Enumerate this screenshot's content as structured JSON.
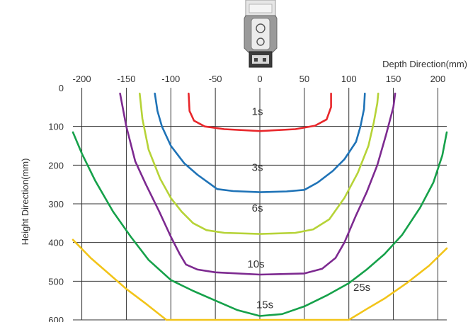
{
  "chart_data": {
    "type": "line",
    "title": "",
    "xlabel": "Depth Direction(mm)",
    "ylabel": "Height Direction(mm)",
    "xlim": [
      -210,
      210
    ],
    "ylim": [
      600,
      0
    ],
    "x_ticks": [
      "-200",
      "-150",
      "-100",
      "-50",
      "0",
      "50",
      "100",
      "150",
      "200"
    ],
    "y_ticks": [
      "0",
      "100",
      "200",
      "300",
      "400",
      "500",
      "600"
    ],
    "grid": true,
    "sensor_icon": "sensor-device-icon",
    "series": [
      {
        "name": "1s",
        "color": "#e8262a",
        "label_pos": [
          -9,
          70
        ],
        "points": [
          [
            -80,
            15
          ],
          [
            -79,
            60
          ],
          [
            -74,
            85
          ],
          [
            -62,
            100
          ],
          [
            -40,
            107
          ],
          [
            0,
            112
          ],
          [
            40,
            107
          ],
          [
            62,
            98
          ],
          [
            75,
            82
          ],
          [
            80,
            50
          ],
          [
            80,
            15
          ]
        ]
      },
      {
        "name": "3s",
        "color": "#1f73b7",
        "label_pos": [
          -9,
          215
        ],
        "points": [
          [
            -118,
            15
          ],
          [
            -115,
            60
          ],
          [
            -110,
            100
          ],
          [
            -100,
            150
          ],
          [
            -85,
            195
          ],
          [
            -70,
            225
          ],
          [
            -55,
            250
          ],
          [
            -48,
            262
          ],
          [
            -30,
            267
          ],
          [
            0,
            270
          ],
          [
            30,
            268
          ],
          [
            50,
            264
          ],
          [
            65,
            245
          ],
          [
            82,
            215
          ],
          [
            95,
            185
          ],
          [
            108,
            140
          ],
          [
            113,
            100
          ],
          [
            117,
            55
          ],
          [
            118,
            15
          ]
        ]
      },
      {
        "name": "6s",
        "color": "#b6d337",
        "label_pos": [
          -9,
          320
        ],
        "points": [
          [
            -135,
            15
          ],
          [
            -132,
            80
          ],
          [
            -125,
            160
          ],
          [
            -112,
            235
          ],
          [
            -100,
            285
          ],
          [
            -88,
            320
          ],
          [
            -75,
            350
          ],
          [
            -60,
            368
          ],
          [
            -40,
            375
          ],
          [
            0,
            378
          ],
          [
            40,
            375
          ],
          [
            60,
            366
          ],
          [
            78,
            340
          ],
          [
            95,
            285
          ],
          [
            110,
            220
          ],
          [
            122,
            150
          ],
          [
            128,
            90
          ],
          [
            132,
            40
          ],
          [
            133,
            15
          ]
        ]
      },
      {
        "name": "10s",
        "color": "#7d2a90",
        "label_pos": [
          -14,
          465
        ],
        "points": [
          [
            -157,
            15
          ],
          [
            -150,
            100
          ],
          [
            -140,
            190
          ],
          [
            -128,
            250
          ],
          [
            -113,
            320
          ],
          [
            -100,
            385
          ],
          [
            -90,
            430
          ],
          [
            -83,
            457
          ],
          [
            -70,
            470
          ],
          [
            -50,
            477
          ],
          [
            0,
            483
          ],
          [
            50,
            480
          ],
          [
            70,
            468
          ],
          [
            85,
            440
          ],
          [
            95,
            400
          ],
          [
            108,
            330
          ],
          [
            120,
            270
          ],
          [
            132,
            200
          ],
          [
            142,
            120
          ],
          [
            150,
            50
          ],
          [
            152,
            15
          ]
        ]
      },
      {
        "name": "15s",
        "color": "#16a14a",
        "label_pos": [
          -4,
          570
        ],
        "points": [
          [
            -210,
            115
          ],
          [
            -200,
            170
          ],
          [
            -185,
            240
          ],
          [
            -165,
            320
          ],
          [
            -145,
            385
          ],
          [
            -125,
            445
          ],
          [
            -100,
            497
          ],
          [
            -75,
            525
          ],
          [
            -50,
            550
          ],
          [
            -25,
            575
          ],
          [
            0,
            590
          ],
          [
            25,
            585
          ],
          [
            50,
            565
          ],
          [
            75,
            537
          ],
          [
            100,
            505
          ],
          [
            120,
            470
          ],
          [
            140,
            430
          ],
          [
            160,
            380
          ],
          [
            180,
            310
          ],
          [
            195,
            245
          ],
          [
            205,
            175
          ],
          [
            210,
            115
          ]
        ]
      },
      {
        "name": "25s",
        "color": "#f2c419",
        "label_pos": [
          105,
          525
        ],
        "points": [
          [
            -210,
            393
          ],
          [
            -190,
            440
          ],
          [
            -170,
            480
          ],
          [
            -150,
            520
          ],
          [
            -127,
            560
          ],
          [
            -105,
            600
          ],
          [
            100,
            600
          ],
          [
            120,
            572
          ],
          [
            140,
            545
          ],
          [
            165,
            505
          ],
          [
            190,
            460
          ],
          [
            210,
            415
          ]
        ]
      }
    ]
  }
}
